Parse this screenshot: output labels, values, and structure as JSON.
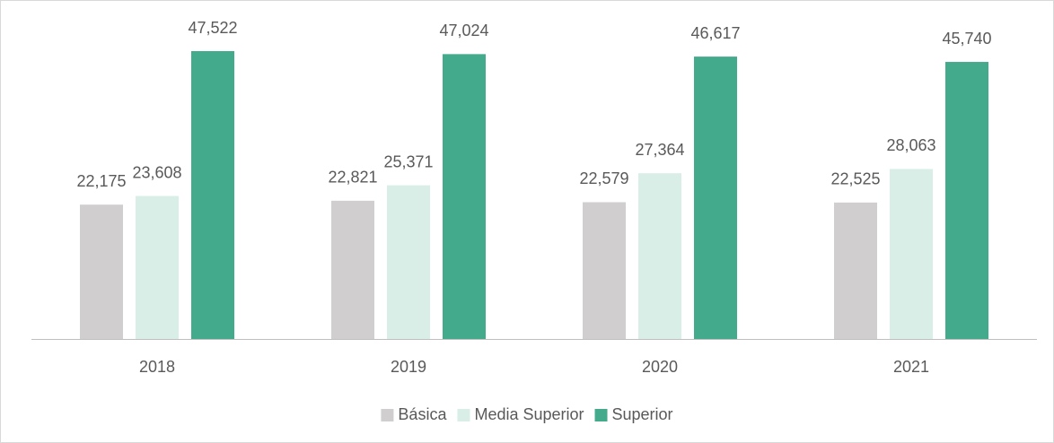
{
  "chart_data": {
    "type": "bar",
    "categories": [
      "2018",
      "2019",
      "2020",
      "2021"
    ],
    "series": [
      {
        "name": "Básica",
        "color": "#d0cece",
        "values": [
          22175,
          22821,
          22579,
          22525
        ],
        "value_labels": [
          "22,175",
          "22,821",
          "22,579",
          "22,525"
        ]
      },
      {
        "name": "Media Superior",
        "color": "#daeee8",
        "values": [
          23608,
          25371,
          27364,
          28063
        ],
        "value_labels": [
          "23,608",
          "25,371",
          "27,364",
          "28,063"
        ]
      },
      {
        "name": "Superior",
        "color": "#43aa8b",
        "values": [
          47522,
          47024,
          46617,
          45740
        ],
        "value_labels": [
          "47,522",
          "47,024",
          "46,617",
          "45,740"
        ]
      }
    ],
    "legend": "bottom"
  }
}
